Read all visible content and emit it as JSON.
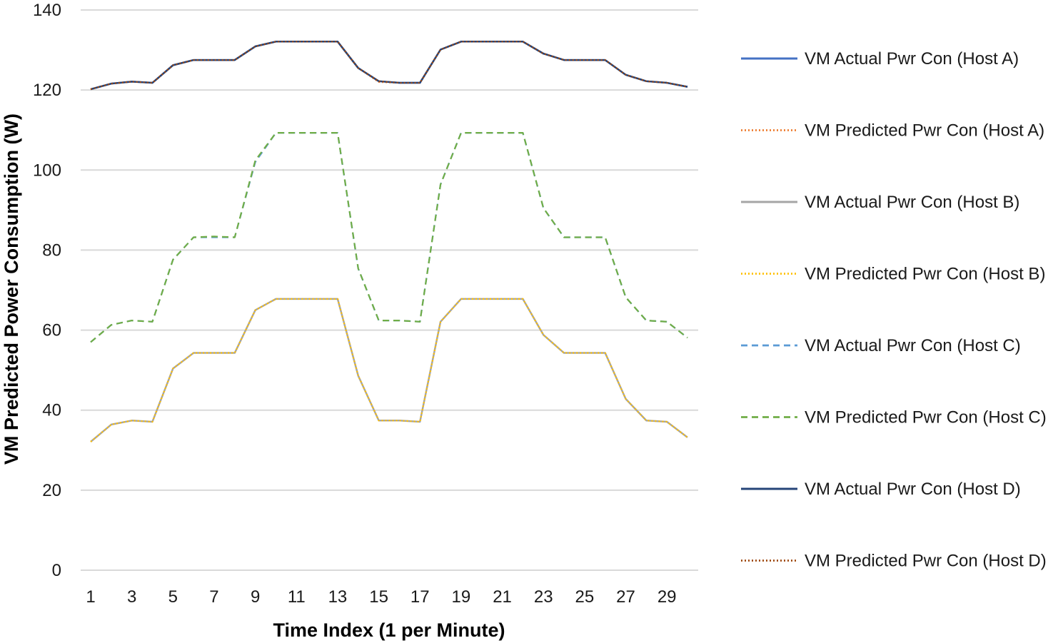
{
  "chart_data": {
    "type": "line",
    "title": "",
    "xlabel": "Time Index (1 per Minute)",
    "ylabel": "VM Predicted Power Consumption (W)",
    "ylim": [
      0,
      140
    ],
    "yticks": [
      0,
      20,
      40,
      60,
      80,
      100,
      120,
      140
    ],
    "xlim": [
      1,
      30
    ],
    "xticks": [
      1,
      3,
      5,
      7,
      9,
      11,
      13,
      15,
      17,
      19,
      21,
      23,
      25,
      27,
      29
    ],
    "x": [
      1,
      2,
      3,
      4,
      5,
      6,
      7,
      8,
      9,
      10,
      11,
      12,
      13,
      14,
      15,
      16,
      17,
      18,
      19,
      20,
      21,
      22,
      23,
      24,
      25,
      26,
      27,
      28,
      29,
      30
    ],
    "grid": "horizontal",
    "legend_position": "right",
    "series": [
      {
        "name": "VM Actual Pwr Con (Host A)",
        "color": "#4472C4",
        "dash": "solid",
        "values": [
          120.2,
          121.6,
          122.1,
          121.8,
          126.2,
          127.5,
          127.5,
          127.5,
          130.9,
          132.1,
          132.1,
          132.1,
          132.1,
          125.5,
          122.2,
          121.8,
          121.8,
          130.1,
          132.1,
          132.1,
          132.1,
          132.1,
          129.1,
          127.5,
          127.5,
          127.5,
          123.8,
          122.2,
          121.8,
          120.8
        ]
      },
      {
        "name": "VM Predicted Pwr Con (Host A)",
        "color": "#ED7D31",
        "dash": "dotted",
        "values": [
          120.2,
          121.6,
          122.1,
          121.8,
          126.2,
          127.5,
          127.5,
          127.5,
          130.9,
          132.1,
          132.1,
          132.1,
          132.1,
          125.5,
          122.0,
          121.8,
          121.8,
          130.1,
          132.1,
          132.1,
          132.1,
          132.1,
          129.1,
          127.5,
          127.5,
          127.5,
          123.8,
          122.2,
          121.8,
          120.8
        ]
      },
      {
        "name": "VM Actual Pwr Con (Host B)",
        "color": "#A5A5A5",
        "dash": "solid",
        "values": [
          32.1,
          36.4,
          37.4,
          37.1,
          50.4,
          54.3,
          54.3,
          54.3,
          65.0,
          67.8,
          67.8,
          67.8,
          67.8,
          48.6,
          37.4,
          37.4,
          37.1,
          62.1,
          67.8,
          67.8,
          67.8,
          67.8,
          58.8,
          54.3,
          54.3,
          54.3,
          42.8,
          37.4,
          37.1,
          33.2
        ]
      },
      {
        "name": "VM Predicted Pwr Con (Host B)",
        "color": "#FFC000",
        "dash": "dotted",
        "values": [
          32.1,
          36.4,
          37.4,
          37.1,
          50.4,
          54.3,
          54.3,
          54.3,
          65.0,
          67.8,
          67.8,
          67.8,
          67.8,
          48.6,
          37.4,
          37.4,
          37.1,
          62.1,
          67.8,
          67.8,
          67.8,
          67.8,
          58.8,
          54.3,
          54.3,
          54.3,
          42.8,
          37.4,
          37.1,
          33.2
        ]
      },
      {
        "name": "VM Actual Pwr Con (Host C)",
        "color": "#5B9BD5",
        "dash": "dashed",
        "values": [
          57.0,
          61.3,
          62.4,
          62.1,
          77.6,
          83.2,
          83.2,
          83.2,
          102.0,
          109.3,
          109.3,
          109.3,
          109.3,
          75.4,
          62.4,
          62.4,
          62.1,
          96.4,
          109.3,
          109.3,
          109.3,
          109.3,
          90.5,
          83.2,
          83.2,
          83.2,
          68.2,
          62.4,
          62.1,
          58.1
        ]
      },
      {
        "name": "VM Predicted Pwr Con (Host C)",
        "color": "#70AD47",
        "dash": "dashed",
        "values": [
          57.0,
          61.3,
          62.4,
          62.1,
          77.6,
          83.2,
          83.4,
          83.2,
          102.4,
          109.3,
          109.3,
          109.3,
          109.3,
          75.4,
          62.4,
          62.4,
          62.1,
          96.4,
          109.3,
          109.3,
          109.3,
          109.3,
          90.5,
          83.2,
          83.2,
          83.2,
          68.2,
          62.4,
          62.1,
          58.1
        ]
      },
      {
        "name": "VM Actual Pwr Con (Host D)",
        "color": "#264478",
        "dash": "solid",
        "values": [
          120.2,
          121.6,
          122.1,
          121.8,
          126.2,
          127.5,
          127.5,
          127.5,
          130.9,
          132.1,
          132.1,
          132.1,
          132.1,
          125.5,
          122.2,
          121.8,
          121.8,
          130.1,
          132.1,
          132.1,
          132.1,
          132.1,
          129.1,
          127.5,
          127.5,
          127.5,
          123.8,
          122.2,
          121.8,
          120.8
        ]
      },
      {
        "name": "VM Predicted Pwr Con (Host D)",
        "color": "#9E480E",
        "dash": "dotted",
        "values": [
          120.2,
          121.6,
          122.1,
          121.8,
          126.2,
          127.5,
          127.5,
          127.5,
          130.9,
          132.1,
          132.1,
          132.1,
          132.1,
          125.5,
          122.2,
          121.8,
          121.8,
          130.1,
          132.1,
          132.1,
          132.1,
          132.1,
          129.1,
          127.5,
          127.5,
          127.5,
          123.8,
          122.2,
          121.8,
          120.8
        ]
      }
    ]
  }
}
